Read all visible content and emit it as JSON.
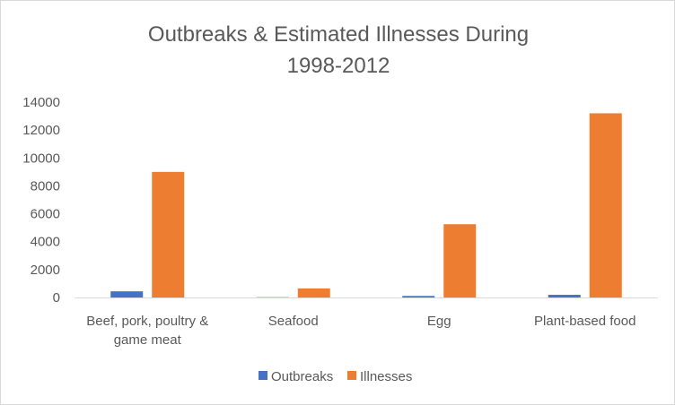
{
  "chart_data": {
    "type": "bar",
    "title_lines": [
      "Outbreaks & Estimated Illnesses During",
      "1998-2012"
    ],
    "categories": [
      [
        "Beef, pork, poultry &",
        "game meat"
      ],
      [
        "Seafood"
      ],
      [
        "Egg"
      ],
      [
        "Plant-based food"
      ]
    ],
    "series": [
      {
        "name": "Outbreaks",
        "values": [
          440,
          20,
          110,
          190
        ],
        "color": "#4472c4"
      },
      {
        "name": "Illnesses",
        "values": [
          9000,
          650,
          5250,
          13200
        ],
        "color": "#ed7d31"
      }
    ],
    "yticks": [
      "0",
      "2000",
      "4000",
      "6000",
      "8000",
      "10000",
      "12000",
      "14000"
    ],
    "ylim": [
      0,
      14000
    ],
    "grid": false,
    "legend": "bottom",
    "xlabel": "",
    "ylabel": ""
  }
}
